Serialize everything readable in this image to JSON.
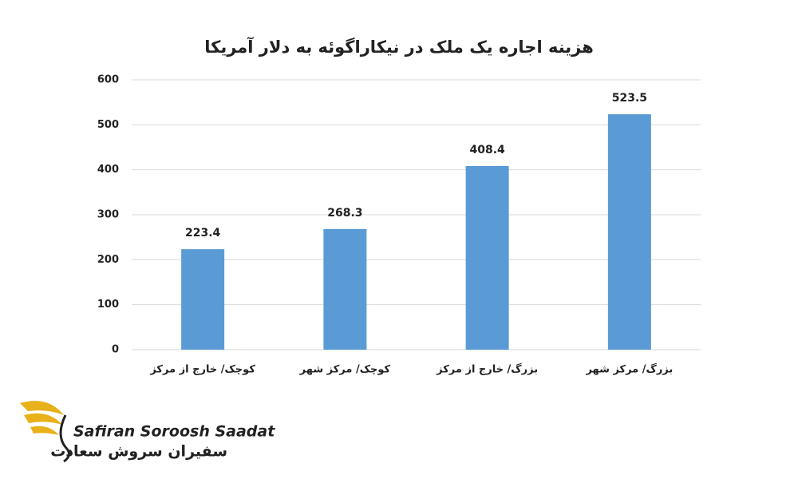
{
  "chart_data": {
    "type": "bar",
    "title": "هزینه اجاره یک ملک در نیکاراگوئه به دلار آمریکا",
    "categories": [
      "کوچک/ خارج از مرکز",
      "کوچک/ مرکز شهر",
      "بزرگ/ خارج از مرکز",
      "بزرگ/ مرکز شهر"
    ],
    "values": [
      223.4,
      268.3,
      408.4,
      523.5
    ],
    "color": "#5b9bd5",
    "ylim": [
      0,
      600
    ],
    "yticks": [
      0,
      100,
      200,
      300,
      400,
      500,
      600
    ],
    "grid": true
  },
  "logo": {
    "name_en": "Safiran Soroosh Saadat",
    "name_fa": "سفیران سروش سعادت"
  }
}
